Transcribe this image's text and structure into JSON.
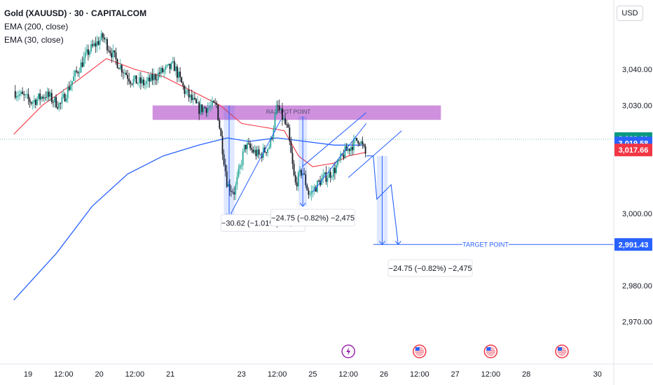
{
  "header": {
    "title": "Gold (XAUUSD) · 30 · CAPITALCOM",
    "indicators": [
      "EMA (200, close)",
      "EMA (30, close)"
    ],
    "currency": "USD"
  },
  "chart_data": {
    "type": "candlestick",
    "y_ticks": [
      {
        "v": 3040,
        "label": "3,040.00"
      },
      {
        "v": 3030,
        "label": "3,030.00"
      },
      {
        "v": 3000,
        "label": "3,000.00"
      },
      {
        "v": 2980,
        "label": "2,980.00"
      },
      {
        "v": 2970,
        "label": "2,970.00"
      }
    ],
    "x_ticks": [
      {
        "t": 0.1,
        "label": "19"
      },
      {
        "t": 0.6,
        "label": "12:00"
      },
      {
        "t": 1.1,
        "label": "20"
      },
      {
        "t": 1.6,
        "label": "12:00"
      },
      {
        "t": 2.1,
        "label": "21"
      },
      {
        "t": 3.1,
        "label": "23"
      },
      {
        "t": 3.6,
        "label": "12:00"
      },
      {
        "t": 4.1,
        "label": "25"
      },
      {
        "t": 4.6,
        "label": "12:00"
      },
      {
        "t": 5.1,
        "label": "26"
      },
      {
        "t": 5.6,
        "label": "12:00"
      },
      {
        "t": 6.1,
        "label": "27"
      },
      {
        "t": 6.6,
        "label": "12:00"
      },
      {
        "t": 7.1,
        "label": "28"
      },
      {
        "t": 8.1,
        "label": "30"
      }
    ],
    "price_path": [
      [
        -0.1,
        3034
      ],
      [
        0.15,
        3031
      ],
      [
        0.35,
        3033
      ],
      [
        0.55,
        3030
      ],
      [
        0.75,
        3038
      ],
      [
        0.95,
        3045
      ],
      [
        1.15,
        3049
      ],
      [
        1.35,
        3042
      ],
      [
        1.55,
        3037
      ],
      [
        1.75,
        3036
      ],
      [
        1.95,
        3039
      ],
      [
        2.15,
        3041
      ],
      [
        2.3,
        3034
      ],
      [
        2.5,
        3029
      ],
      [
        2.75,
        3030
      ],
      [
        2.9,
        3008
      ],
      [
        3.0,
        3006
      ],
      [
        3.15,
        3019
      ],
      [
        3.35,
        3016
      ],
      [
        3.5,
        3019
      ],
      [
        3.6,
        3030
      ],
      [
        3.75,
        3023
      ],
      [
        3.85,
        3008
      ],
      [
        3.95,
        3012
      ],
      [
        4.05,
        3005
      ],
      [
        4.2,
        3009
      ],
      [
        4.4,
        3012
      ],
      [
        4.55,
        3017
      ],
      [
        4.75,
        3021
      ],
      [
        4.85,
        3016
      ]
    ],
    "ema_200": [
      [
        -0.1,
        2976
      ],
      [
        0.5,
        2989
      ],
      [
        1.0,
        3002
      ],
      [
        1.5,
        3011
      ],
      [
        2.0,
        3016
      ],
      [
        2.5,
        3019
      ],
      [
        2.9,
        3021
      ],
      [
        3.2,
        3020
      ],
      [
        3.6,
        3021
      ],
      [
        4.0,
        3020
      ],
      [
        4.4,
        3019
      ],
      [
        4.8,
        3019
      ]
    ],
    "ema_30": [
      [
        -0.1,
        3022
      ],
      [
        0.3,
        3030
      ],
      [
        0.8,
        3037
      ],
      [
        1.2,
        3043
      ],
      [
        1.6,
        3040
      ],
      [
        2.0,
        3038
      ],
      [
        2.4,
        3034
      ],
      [
        2.8,
        3030
      ],
      [
        3.1,
        3025
      ],
      [
        3.4,
        3024
      ],
      [
        3.7,
        3023
      ],
      [
        3.9,
        3016
      ],
      [
        4.1,
        3013
      ],
      [
        4.4,
        3014
      ],
      [
        4.6,
        3016
      ],
      [
        4.85,
        3017
      ]
    ],
    "current_price": 3020.61,
    "countdown": "05:20",
    "ema200_value": 3019.58,
    "ema30_value": 3017.66,
    "target_price": 2991.43,
    "zone": {
      "label": "RAJAPOT POINT",
      "from_t": 1.85,
      "to_t": 5.9,
      "low": 3026,
      "high": 3030
    },
    "measurements": [
      {
        "label": "−30.62 (−1.01%) −3,062",
        "t0": 2.85,
        "t1": 3.0,
        "top": 3030,
        "bottom": 2999,
        "box_t": 2.85,
        "box_v": 2997
      },
      {
        "label": "−24.75 (−0.82%) −2,475",
        "t0": 3.9,
        "t1": 4.02,
        "top": 3027,
        "bottom": 3002,
        "box_t": 3.55,
        "box_v": 2998.5
      },
      {
        "label": "−24.75 (−0.82%) −2,475",
        "t0": 5.0,
        "t1": 5.15,
        "top": 3016,
        "bottom": 2991.4,
        "box_t": 5.2,
        "box_v": 2984.5
      }
    ],
    "target_label": "TARGET POINT",
    "channel_lines": [
      [
        [
          2.95,
          3000
        ],
        [
          3.65,
          3026
        ]
      ],
      [
        [
          4.1,
          3006
        ],
        [
          4.85,
          3025
        ]
      ],
      [
        [
          3.95,
          3013
        ],
        [
          4.85,
          3028
        ]
      ],
      [
        [
          4.6,
          3010
        ],
        [
          5.35,
          3023
        ]
      ]
    ],
    "projection": [
      [
        4.85,
        3016
      ],
      [
        4.95,
        3016
      ],
      [
        5.0,
        3004
      ],
      [
        5.2,
        3008
      ],
      [
        5.3,
        2991.4
      ]
    ],
    "event_icons": [
      {
        "t": 4.6,
        "icon": "lightning-icon"
      },
      {
        "t": 5.6,
        "icon": "flag-icon"
      },
      {
        "t": 6.6,
        "icon": "flag-icon"
      },
      {
        "t": 7.6,
        "icon": "flag-icon"
      }
    ],
    "colors": {
      "up": "#26a69a",
      "down": "#131722",
      "ema200": "#2962ff",
      "ema30": "#f23645",
      "zone": "#c77dd8",
      "measure": "#2962ff",
      "price_badge": "#089981",
      "ema200_badge": "#2962ff",
      "ema30_badge": "#f23645",
      "target": "#2962ff"
    }
  }
}
